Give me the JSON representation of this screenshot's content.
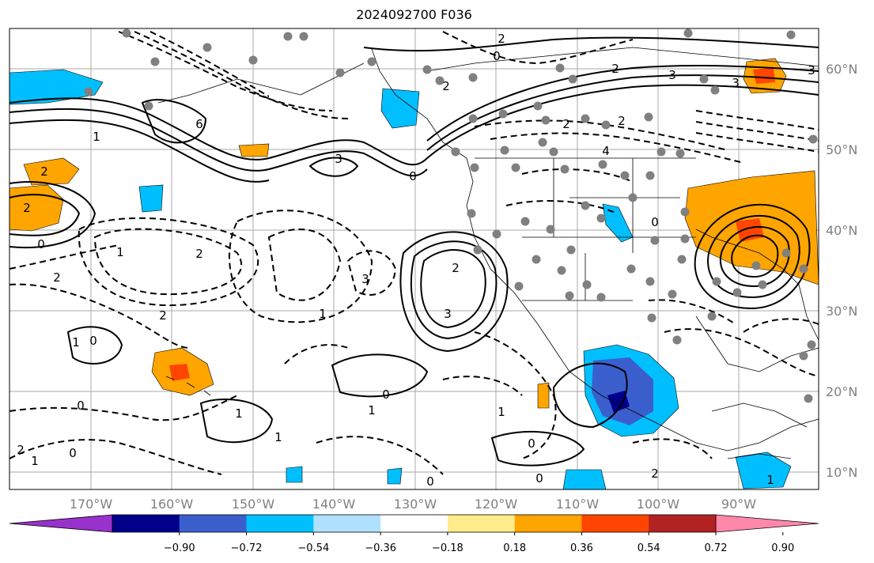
{
  "title": "2024092700 F036",
  "map": {
    "lat_labels": [
      "60°N",
      "50°N",
      "40°N",
      "30°N",
      "20°N",
      "10°N"
    ],
    "lon_labels": [
      "170°W",
      "160°W",
      "150°W",
      "140°W",
      "130°W",
      "120°W",
      "110°W",
      "100°W",
      "90°W"
    ],
    "contour_labels": [
      "2",
      "0",
      "2",
      "2",
      "3",
      "3",
      "2",
      "6",
      "1",
      "3",
      "0",
      "2",
      "4",
      "2",
      "2",
      "0",
      "0",
      "1",
      "2",
      "2",
      "3",
      "2",
      "3",
      "2",
      "1",
      "0",
      "1",
      "1",
      "0",
      "1",
      "0",
      "1",
      "0",
      "2",
      "1",
      "0",
      "0",
      "1",
      "0",
      "2",
      "1",
      "3"
    ]
  },
  "colorbar": {
    "tick_labels": [
      "−0.90",
      "−0.72",
      "−0.54",
      "−0.36",
      "−0.18",
      "0.18",
      "0.36",
      "0.54",
      "0.72",
      "0.90"
    ],
    "colors": [
      "#9932cc",
      "#00008b",
      "#3a5fcd",
      "#00bfff",
      "#b0e2ff",
      "#ffffff",
      "#ffec8b",
      "#ffa500",
      "#ff4500",
      "#b22222",
      "#ff88aa"
    ]
  },
  "colors": {
    "grid": "#a9a9a9",
    "coast": "#000000",
    "station": "#808080"
  }
}
